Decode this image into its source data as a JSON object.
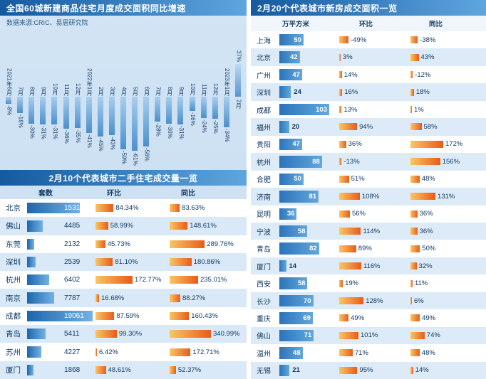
{
  "colors": {
    "title_bar_start": "#15599f",
    "title_bar_end": "#5ea6df",
    "bar_blue_dark": "#1d66ad",
    "bar_blue_light": "#72b2e4",
    "bar_orange_light": "#f9c667",
    "bar_orange_dark": "#ea5b17",
    "row_alt": "#d9e9f7",
    "text_navy": "#123a63",
    "panel_bg": "#c6dcef"
  },
  "chart_data": [
    {
      "type": "bar",
      "title": "全国60城新建商品住宅月度成交面积同比增速",
      "source": "数据来源:CRIC、易居研究院",
      "unit": "%",
      "categories": [
        "2021年6月",
        "7月",
        "8月",
        "9月",
        "10月",
        "11月",
        "12月",
        "2022年1月",
        "2月",
        "3月",
        "4月",
        "5月",
        "6月",
        "7月",
        "8月",
        "9月",
        "10月",
        "11月",
        "12月",
        "2023年1月",
        "2月"
      ],
      "values": [
        -8,
        -18,
        -30,
        -31,
        -31,
        -36,
        -35,
        -41,
        -45,
        -43,
        -59,
        -61,
        -56,
        -28,
        -30,
        -31,
        -16,
        -24,
        -25,
        -34,
        37
      ],
      "ylim": [
        -70,
        45
      ],
      "grid": false,
      "legend": "none"
    },
    {
      "type": "table",
      "title": "2月10个代表城市二手住宅成交量一览",
      "columns": [
        "套数",
        "环比",
        "同比"
      ],
      "max": {
        "units": 19061,
        "mom_pct": 172.77,
        "yoy_pct": 340.99
      },
      "rows": [
        [
          "北京",
          "15315",
          "84.34%",
          "83.63%"
        ],
        [
          "佛山",
          "4485",
          "58.99%",
          "148.61%"
        ],
        [
          "东莞",
          "2132",
          "45.73%",
          "289.76%"
        ],
        [
          "深圳",
          "2539",
          "81.10%",
          "180.86%"
        ],
        [
          "杭州",
          "6402",
          "172.77%",
          "235.01%"
        ],
        [
          "南京",
          "7787",
          "16.68%",
          "88.27%"
        ],
        [
          "成都",
          "19061",
          "87.59%",
          "160.43%"
        ],
        [
          "青岛",
          "5411",
          "99.30%",
          "340.99%"
        ],
        [
          "苏州",
          "4227",
          "6.42%",
          "172.71%"
        ],
        [
          "厦门",
          "1868",
          "48.61%",
          "52.37%"
        ]
      ]
    },
    {
      "type": "table",
      "title": "2月20个代表城市新房成交面积一览",
      "columns": [
        "万平方米",
        "环比",
        "同比"
      ],
      "max": {
        "area": 103,
        "pct": 172
      },
      "rows": [
        [
          "上海",
          "50",
          "-49%",
          "-38%"
        ],
        [
          "北京",
          "42",
          "3%",
          "43%"
        ],
        [
          "广州",
          "47",
          "14%",
          "-12%"
        ],
        [
          "深圳",
          "24",
          "16%",
          "18%"
        ],
        [
          "成都",
          "103",
          "13%",
          "1%"
        ],
        [
          "福州",
          "20",
          "94%",
          "58%"
        ],
        [
          "贵阳",
          "47",
          "36%",
          "172%"
        ],
        [
          "杭州",
          "88",
          "-13%",
          "156%"
        ],
        [
          "合肥",
          "50",
          "51%",
          "48%"
        ],
        [
          "济南",
          "81",
          "108%",
          "131%"
        ],
        [
          "昆明",
          "36",
          "56%",
          "36%"
        ],
        [
          "宁波",
          "58",
          "114%",
          "36%"
        ],
        [
          "青岛",
          "82",
          "89%",
          "50%"
        ],
        [
          "厦门",
          "14",
          "116%",
          "32%"
        ],
        [
          "西安",
          "58",
          "19%",
          "11%"
        ],
        [
          "长沙",
          "70",
          "128%",
          "6%"
        ],
        [
          "重庆",
          "69",
          "49%",
          "49%"
        ],
        [
          "佛山",
          "71",
          "101%",
          "74%"
        ],
        [
          "温州",
          "48",
          "71%",
          "48%"
        ],
        [
          "无锡",
          "21",
          "95%",
          "14%"
        ]
      ]
    }
  ]
}
